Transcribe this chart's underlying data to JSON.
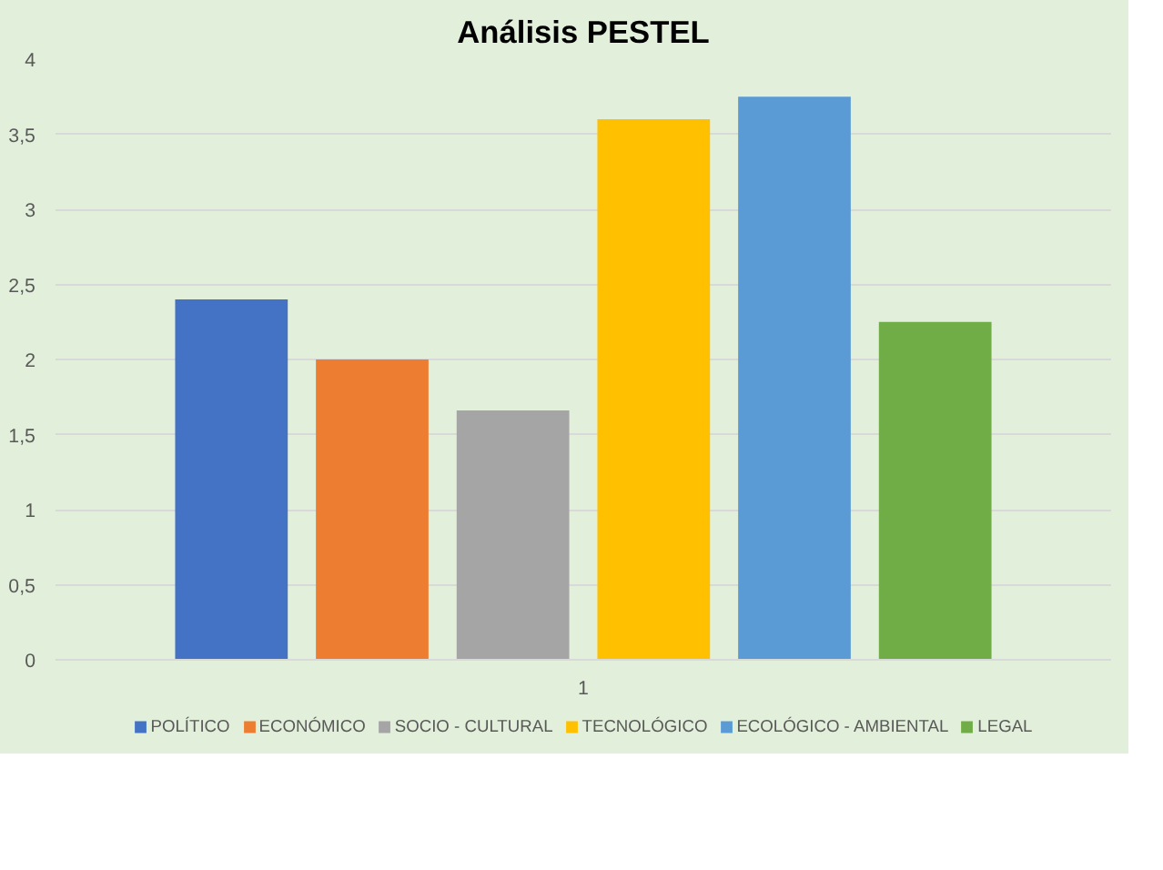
{
  "chart_data": {
    "type": "bar",
    "title": "Análisis PESTEL",
    "categories": [
      "1"
    ],
    "series": [
      {
        "name": "POLÍTICO",
        "color": "#4472c4",
        "values": [
          2.4
        ]
      },
      {
        "name": "ECONÓMICO",
        "color": "#ed7d31",
        "values": [
          2.0
        ]
      },
      {
        "name": "SOCIO - CULTURAL",
        "color": "#a5a5a5",
        "values": [
          1.66
        ]
      },
      {
        "name": "TECNOLÓGICO",
        "color": "#ffc000",
        "values": [
          3.6
        ]
      },
      {
        "name": "ECOLÓGICO - AMBIENTAL",
        "color": "#5b9bd5",
        "values": [
          3.75
        ]
      },
      {
        "name": "LEGAL",
        "color": "#70ad47",
        "values": [
          2.25
        ]
      }
    ],
    "ylim": [
      0,
      4
    ],
    "yticks": [
      0,
      {
        "value": 0.5,
        "label": "0,5"
      },
      1,
      {
        "value": 1.5,
        "label": "1,5"
      },
      2,
      {
        "value": 2.5,
        "label": "2,5"
      },
      3,
      {
        "value": 3.5,
        "label": "3,5"
      },
      4
    ],
    "grid": "y",
    "legend": "bottom"
  }
}
